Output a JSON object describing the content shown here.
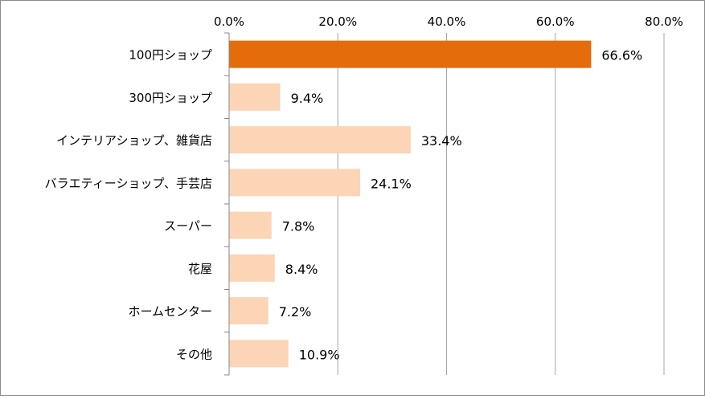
{
  "chart_data": {
    "type": "bar",
    "orientation": "horizontal",
    "title": "",
    "xlabel": "",
    "ylabel": "",
    "xlim": [
      0,
      80
    ],
    "x_ticks": [
      "0.0%",
      "20.0%",
      "40.0%",
      "60.0%",
      "80.0%"
    ],
    "grid": true,
    "legend": "none",
    "categories": [
      "100円ショップ",
      "300円ショップ",
      "インテリアショップ、雑貨店",
      "バラエティーショップ、手芸店",
      "スーパー",
      "花屋",
      "ホームセンター",
      "その他"
    ],
    "values": [
      66.6,
      9.4,
      33.4,
      24.1,
      7.8,
      8.4,
      7.2,
      10.9
    ],
    "value_labels": [
      "66.6%",
      "9.4%",
      "33.4%",
      "24.1%",
      "7.8%",
      "8.4%",
      "7.2%",
      "10.9%"
    ],
    "colors": {
      "highlight": "#e46c0a",
      "bar": "#fbd5b5",
      "grid": "#a6a6a6",
      "axis": "#868686",
      "border": "#8c8c8c"
    },
    "highlight_index": 0
  }
}
